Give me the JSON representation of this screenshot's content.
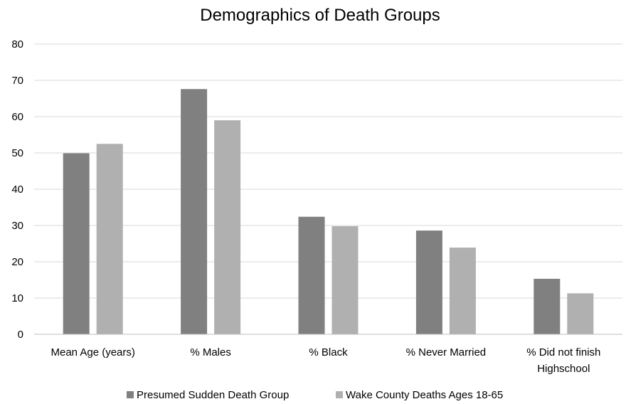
{
  "chart_data": {
    "type": "bar",
    "title": "Demographics of Death Groups",
    "xlabel": "",
    "ylabel": "",
    "ylim": [
      0,
      80
    ],
    "yticks": [
      0,
      10,
      20,
      30,
      40,
      50,
      60,
      70,
      80
    ],
    "grid": true,
    "legend_position": "bottom",
    "categories": [
      [
        "Mean Age (years)"
      ],
      [
        "% Males"
      ],
      [
        "% Black"
      ],
      [
        "% Never Married"
      ],
      [
        "% Did not finish",
        "Highschool"
      ]
    ],
    "series": [
      {
        "name": "Presumed Sudden Death Group",
        "color": "#808080",
        "values": [
          49.9,
          67.6,
          32.4,
          28.6,
          15.3
        ]
      },
      {
        "name": "Wake County Deaths Ages 18-65",
        "color": "#b0b0b0",
        "values": [
          52.5,
          59.0,
          29.8,
          23.9,
          11.3
        ]
      }
    ]
  }
}
